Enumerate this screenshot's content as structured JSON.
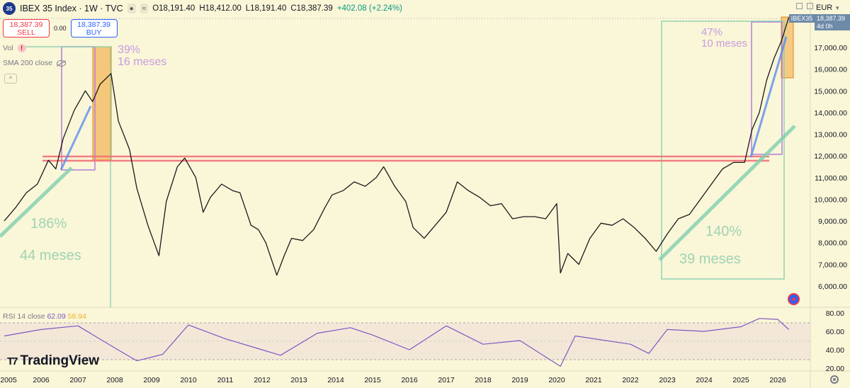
{
  "header": {
    "symbol_badge": "35",
    "title": "IBEX 35 Index · 1W · TVC",
    "open": "O18,191.40",
    "high": "H18,412.00",
    "low": "L18,191.40",
    "close": "C18,387.39",
    "change": "+402.08 (+2.24%)"
  },
  "trade": {
    "sell_price": "18,387.39",
    "sell_label": "SELL",
    "spread": "0.00",
    "buy_price": "18,387.39",
    "buy_label": "BUY"
  },
  "legends": {
    "vol_label": "Vol",
    "sma_label": "SMA 200 close",
    "rsi_label": "RSI 14 close",
    "rsi_value": "62.09",
    "rsi_ma_value": "58.94"
  },
  "price_scale": {
    "currency": "EUR",
    "last_price_tag": "18,387.39",
    "countdown": "4d 0h",
    "symbol_tag": "IBEX35",
    "ticks": [
      "17,000.00",
      "16,000.00",
      "15,000.00",
      "14,000.00",
      "13,000.00",
      "12,000.00",
      "11,000.00",
      "10,000.00",
      "9,000.00",
      "8,000.00",
      "7,000.00",
      "6,000.00"
    ]
  },
  "rsi_scale": {
    "ticks": [
      "80.00",
      "60.00",
      "40.00",
      "20.00"
    ]
  },
  "time_axis": {
    "labels": [
      "2005",
      "2006",
      "2007",
      "2008",
      "2009",
      "2010",
      "2011",
      "2012",
      "2013",
      "2014",
      "2015",
      "2016",
      "2017",
      "2018",
      "2019",
      "2020",
      "2021",
      "2022",
      "2023",
      "2024",
      "2025",
      "2026"
    ]
  },
  "annotations": {
    "rally_2005_pct": "186%",
    "rally_2005_dur": "44 meses",
    "rally_2007_pct": "39%",
    "rally_2007_dur": "16 meses",
    "rally_2022_pct": "140%",
    "rally_2022_dur": "39 meses",
    "rally_2025_pct": "47%",
    "rally_2025_dur": "10 meses"
  },
  "branding": {
    "logo_text": "TradingView"
  },
  "colors": {
    "background": "#faf6d8",
    "candle": "#1a1a1a",
    "resistance": "#f07178",
    "trend": "#7fcfae",
    "fib_box": "#b57edc",
    "rsi_line": "#7e57c2",
    "rsi_ma": "#f0b429",
    "label_green": "#9fd4b4",
    "label_purple": "#c89be0"
  },
  "chart_data": {
    "type": "line",
    "title": "IBEX 35 Index · 1W · TVC",
    "xlabel": "",
    "ylabel": "",
    "xlim": [
      2005.0,
      2026.3
    ],
    "ylim": [
      6000,
      18400
    ],
    "series": [
      {
        "name": "IBEX 35",
        "x": [
          2005.0,
          2005.3,
          2005.6,
          2005.9,
          2006.2,
          2006.4,
          2006.6,
          2006.9,
          2007.2,
          2007.4,
          2007.6,
          2007.9,
          2008.1,
          2008.4,
          2008.6,
          2008.9,
          2009.2,
          2009.4,
          2009.7,
          2009.9,
          2010.2,
          2010.4,
          2010.6,
          2010.9,
          2011.2,
          2011.4,
          2011.7,
          2011.9,
          2012.1,
          2012.4,
          2012.6,
          2012.8,
          2013.1,
          2013.4,
          2013.7,
          2013.9,
          2014.2,
          2014.5,
          2014.8,
          2015.1,
          2015.3,
          2015.6,
          2015.9,
          2016.1,
          2016.4,
          2016.7,
          2017.0,
          2017.3,
          2017.6,
          2017.9,
          2018.2,
          2018.5,
          2018.8,
          2019.1,
          2019.4,
          2019.7,
          2020.0,
          2020.1,
          2020.3,
          2020.6,
          2020.9,
          2021.2,
          2021.5,
          2021.8,
          2022.1,
          2022.4,
          2022.7,
          2023.0,
          2023.3,
          2023.6,
          2023.9,
          2024.2,
          2024.5,
          2024.8,
          2025.1,
          2025.3,
          2025.5,
          2025.7,
          2025.9,
          2026.1,
          2026.3
        ],
        "y": [
          9000,
          9600,
          10300,
          10700,
          11800,
          11400,
          12800,
          14100,
          15000,
          14500,
          15300,
          15800,
          13600,
          12300,
          10500,
          8800,
          7400,
          9900,
          11500,
          11900,
          11000,
          9400,
          10100,
          10700,
          10400,
          10300,
          8800,
          8600,
          8000,
          6500,
          7400,
          8200,
          8100,
          8600,
          9600,
          10200,
          10400,
          10800,
          10600,
          11000,
          11500,
          10600,
          9900,
          8700,
          8200,
          8800,
          9400,
          10800,
          10400,
          10100,
          9700,
          9800,
          9100,
          9200,
          9200,
          9100,
          9800,
          6600,
          7500,
          7000,
          8200,
          8900,
          8800,
          9100,
          8700,
          8200,
          7600,
          8400,
          9100,
          9300,
          10000,
          10700,
          11400,
          11700,
          11700,
          13200,
          14000,
          15500,
          16500,
          17300,
          18387
        ]
      },
      {
        "name": "RSI 14",
        "x": [
          2005.0,
          2006.0,
          2007.0,
          2008.0,
          2008.6,
          2009.3,
          2010.0,
          2011.0,
          2012.0,
          2012.5,
          2013.5,
          2014.4,
          2015.0,
          2016.0,
          2017.0,
          2018.0,
          2019.0,
          2020.1,
          2020.5,
          2021.0,
          2022.0,
          2022.5,
          2023.0,
          2024.0,
          2025.0,
          2025.5,
          2026.0,
          2026.3
        ],
        "y": [
          55,
          62,
          66,
          42,
          28,
          35,
          67,
          52,
          40,
          34,
          58,
          64,
          56,
          40,
          66,
          46,
          50,
          22,
          55,
          52,
          46,
          36,
          62,
          60,
          65,
          74,
          73,
          62
        ]
      }
    ],
    "horizontal_levels": [
      11800
    ],
    "rsi_levels": [
      70,
      50,
      30
    ],
    "grid": false
  }
}
